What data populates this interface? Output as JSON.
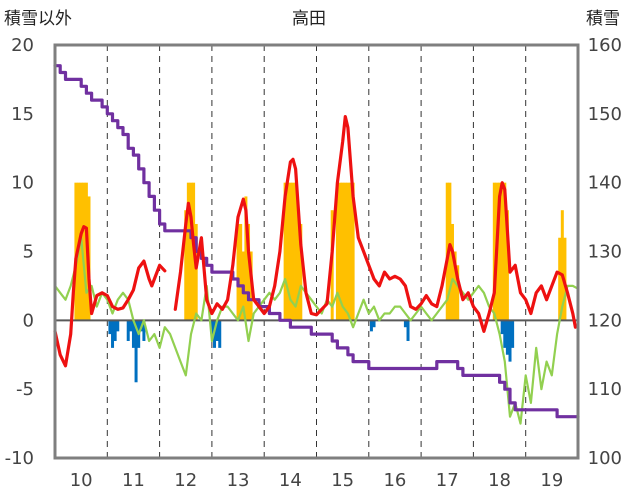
{
  "chart_data": {
    "type": "line",
    "title": "高田",
    "ylabel_left": "積雪以外",
    "ylabel_right": "積雪",
    "ylim_left": [
      -10,
      20
    ],
    "ylim_right": [
      100,
      160
    ],
    "yticks_left": [
      "20",
      "15",
      "10",
      "5",
      "0",
      "-5",
      "-10"
    ],
    "yticks_right": [
      "160",
      "150",
      "140",
      "130",
      "120",
      "110",
      "100"
    ],
    "xlim": [
      9.5,
      19.5
    ],
    "xticks": [
      "10",
      "11",
      "12",
      "13",
      "14",
      "15",
      "16",
      "17",
      "18",
      "19"
    ],
    "grid": "vertical-dashed",
    "colors": {
      "red": "#ee1111",
      "green": "#92d050",
      "purple": "#7030a0",
      "orange": "#ffc000",
      "blue": "#0070c0",
      "frame": "#7f7f7f"
    },
    "series": [
      {
        "color": "#ee1111",
        "axis": "left",
        "x": [
          9.5,
          9.6,
          9.7,
          9.8,
          9.85,
          9.9,
          10.0,
          10.05,
          10.1,
          10.15,
          10.2,
          10.3,
          10.4,
          10.5,
          10.6,
          10.7,
          10.8,
          10.9,
          11.0,
          11.1,
          11.2,
          11.3,
          11.35,
          11.4,
          11.5,
          11.6,
          11.7,
          11.8,
          11.9,
          12.0,
          12.05,
          12.1,
          12.15,
          12.2,
          12.3,
          12.4,
          12.5,
          12.6,
          12.7,
          12.8,
          12.9,
          13.0,
          13.1,
          13.15,
          13.2,
          13.3,
          13.4,
          13.5,
          13.6,
          13.7,
          13.8,
          13.9,
          14.0,
          14.05,
          14.1,
          14.2,
          14.3,
          14.4,
          14.5,
          14.6,
          14.7,
          14.8,
          14.9,
          15.0,
          15.05,
          15.1,
          15.2,
          15.3,
          15.4,
          15.5,
          15.6,
          15.7,
          15.8,
          15.9,
          16.0,
          16.1,
          16.2,
          16.3,
          16.4,
          16.5,
          16.6,
          16.7,
          16.8,
          16.9,
          17.0,
          17.05,
          17.1,
          17.2,
          17.3,
          17.4,
          17.5,
          17.6,
          17.7,
          17.8,
          17.9,
          18.0,
          18.05,
          18.1,
          18.2,
          18.3,
          18.4,
          18.5,
          18.6,
          18.7,
          18.8,
          18.9,
          19.0,
          19.1,
          19.2,
          19.3,
          19.4,
          19.45
        ],
        "values": [
          -0.8,
          -2.5,
          -3.3,
          -1.0,
          2.0,
          4.5,
          6.3,
          6.8,
          6.7,
          3.0,
          0.5,
          1.8,
          2.0,
          1.8,
          1.0,
          0.8,
          0.9,
          1.5,
          2.2,
          3.8,
          4.3,
          3.0,
          2.5,
          3.0,
          4.0,
          3.6,
          null,
          0.8,
          3.5,
          7.0,
          8.5,
          7.5,
          5.5,
          3.8,
          6.0,
          1.5,
          0.5,
          1.2,
          0.8,
          1.5,
          4.0,
          7.5,
          8.8,
          8.0,
          5.0,
          1.5,
          1.0,
          0.5,
          1.0,
          2.5,
          5.0,
          9.0,
          11.5,
          11.7,
          11.0,
          5.5,
          2.0,
          0.5,
          0.4,
          0.8,
          1.2,
          5.0,
          10.0,
          13.0,
          14.8,
          14.0,
          9.0,
          6.0,
          5.0,
          4.0,
          3.0,
          2.5,
          3.5,
          3.0,
          3.2,
          3.0,
          2.5,
          1.0,
          0.8,
          1.2,
          1.8,
          1.2,
          1.0,
          2.5,
          4.5,
          5.5,
          5.0,
          3.0,
          1.5,
          2.0,
          1.0,
          0.5,
          -0.8,
          0.5,
          2.0,
          9.0,
          10.0,
          9.5,
          3.5,
          4.0,
          2.0,
          1.5,
          0.5,
          2.0,
          2.5,
          1.5,
          2.5,
          3.5,
          3.3,
          2.0,
          0.5,
          -0.5
        ]
      },
      {
        "color": "#92d050",
        "axis": "left",
        "x": [
          9.5,
          9.6,
          9.7,
          9.8,
          9.9,
          10.0,
          10.1,
          10.2,
          10.3,
          10.4,
          10.5,
          10.6,
          10.7,
          10.8,
          10.9,
          11.0,
          11.1,
          11.2,
          11.3,
          11.4,
          11.5,
          11.6,
          11.7,
          11.8,
          11.9,
          12.0,
          12.1,
          12.2,
          12.3,
          12.4,
          12.5,
          12.6,
          12.7,
          12.8,
          12.9,
          13.0,
          13.1,
          13.2,
          13.3,
          13.4,
          13.5,
          13.6,
          13.7,
          13.8,
          13.9,
          14.0,
          14.1,
          14.2,
          14.3,
          14.4,
          14.5,
          14.6,
          14.7,
          14.8,
          14.9,
          15.0,
          15.1,
          15.2,
          15.3,
          15.4,
          15.5,
          15.6,
          15.7,
          15.8,
          15.9,
          16.0,
          16.1,
          16.2,
          16.3,
          16.4,
          16.5,
          16.6,
          16.7,
          16.8,
          16.9,
          17.0,
          17.1,
          17.2,
          17.3,
          17.4,
          17.5,
          17.6,
          17.7,
          17.8,
          17.9,
          18.0,
          18.1,
          18.2,
          18.3,
          18.4,
          18.5,
          18.6,
          18.7,
          18.8,
          18.9,
          19.0,
          19.1,
          19.2,
          19.3,
          19.4,
          19.5
        ],
        "values": [
          2.5,
          2.0,
          1.5,
          2.5,
          4.0,
          6.0,
          2.0,
          2.5,
          1.0,
          2.0,
          1.5,
          0.5,
          1.5,
          2.0,
          1.5,
          0.0,
          -1.0,
          0.0,
          -1.5,
          -1.0,
          -2.0,
          -0.5,
          -1.0,
          -2.0,
          -3.0,
          -4.0,
          -1.0,
          0.5,
          0.0,
          2.5,
          -1.5,
          0.0,
          1.0,
          1.0,
          0.5,
          0.0,
          1.0,
          -1.5,
          0.5,
          1.0,
          1.5,
          2.0,
          1.5,
          2.0,
          3.0,
          1.5,
          1.0,
          2.5,
          2.0,
          1.5,
          1.0,
          0.5,
          1.5,
          1.0,
          2.0,
          1.0,
          0.5,
          -0.5,
          0.5,
          1.5,
          0.5,
          1.0,
          0.0,
          0.5,
          0.5,
          1.0,
          1.0,
          0.5,
          0.0,
          0.5,
          1.0,
          0.5,
          0.0,
          0.5,
          1.0,
          1.5,
          3.0,
          2.5,
          2.0,
          1.5,
          2.0,
          2.5,
          2.0,
          1.0,
          0.5,
          -1.0,
          -3.0,
          -7.0,
          -6.0,
          -7.5,
          -4.0,
          -6.0,
          -2.0,
          -5.0,
          -3.0,
          -4.0,
          -1.0,
          1.0,
          2.5,
          2.5,
          2.3
        ]
      },
      {
        "color": "#7030a0",
        "axis": "right",
        "x": [
          9.5,
          9.6,
          9.7,
          9.8,
          9.9,
          10.0,
          10.1,
          10.2,
          10.3,
          10.4,
          10.5,
          10.6,
          10.7,
          10.8,
          10.9,
          11.0,
          11.1,
          11.2,
          11.3,
          11.4,
          11.5,
          11.6,
          11.7,
          11.8,
          11.9,
          12.0,
          12.1,
          12.2,
          12.3,
          12.4,
          12.5,
          12.6,
          12.7,
          12.8,
          12.9,
          13.0,
          13.1,
          13.2,
          13.3,
          13.4,
          13.5,
          13.6,
          13.7,
          13.8,
          13.9,
          14.0,
          14.1,
          14.2,
          14.3,
          14.4,
          14.5,
          14.6,
          14.7,
          14.8,
          14.9,
          15.0,
          15.1,
          15.2,
          15.3,
          15.4,
          15.5,
          15.6,
          15.7,
          15.8,
          15.9,
          16.0,
          16.1,
          16.2,
          16.3,
          16.4,
          16.5,
          16.6,
          16.7,
          16.8,
          16.9,
          17.0,
          17.1,
          17.2,
          17.3,
          17.4,
          17.5,
          17.6,
          17.7,
          17.8,
          17.9,
          18.0,
          18.1,
          18.2,
          18.3,
          18.4,
          18.5,
          18.6,
          18.7,
          18.8,
          18.9,
          19.0,
          19.1,
          19.2,
          19.3,
          19.4,
          19.5
        ],
        "values": [
          157,
          156,
          155,
          155,
          155,
          154,
          153,
          152,
          152,
          151,
          150,
          149,
          148,
          147,
          145,
          144,
          142,
          140,
          138,
          136,
          134,
          133,
          133,
          133,
          133,
          133,
          132,
          130,
          129,
          128,
          127,
          127,
          127,
          127,
          126,
          125,
          124,
          123,
          123,
          122,
          122,
          121,
          121,
          120,
          120,
          119,
          119,
          119,
          119,
          118,
          118,
          118,
          118,
          117,
          116,
          116,
          115,
          114,
          114,
          114,
          113,
          113,
          113,
          113,
          113,
          113,
          113,
          113,
          113,
          113,
          113,
          113,
          113,
          114,
          114,
          114,
          114,
          113,
          112,
          112,
          112,
          112,
          112,
          112,
          112,
          111,
          110,
          108,
          107,
          107,
          107,
          107,
          107,
          107,
          107,
          107,
          106,
          106,
          106,
          106,
          106
        ]
      }
    ],
    "bars": {
      "orange": {
        "color": "#ffc000",
        "axis": "left",
        "x": [
          9.9,
          9.95,
          10.0,
          10.05,
          10.1,
          10.15,
          12.0,
          12.05,
          12.1,
          12.15,
          12.2,
          13.0,
          13.05,
          13.1,
          13.15,
          13.2,
          13.25,
          13.9,
          13.95,
          14.0,
          14.05,
          14.1,
          14.15,
          14.2,
          14.8,
          14.9,
          14.95,
          15.0,
          15.05,
          15.1,
          15.15,
          15.2,
          17.0,
          17.05,
          17.1,
          17.15,
          17.2,
          17.9,
          17.95,
          18.0,
          18.05,
          18.1,
          18.15,
          19.15,
          19.2,
          19.25
        ],
        "values": [
          10,
          10,
          10,
          10,
          10,
          9,
          8,
          10,
          10,
          10,
          7,
          7,
          7,
          5,
          9,
          7,
          5,
          10,
          10,
          10,
          10,
          10,
          8,
          7,
          8,
          10,
          10,
          10,
          10,
          10,
          10,
          10,
          10,
          10,
          7,
          5,
          4,
          10,
          10,
          10,
          10,
          10,
          8,
          6,
          8,
          6
        ]
      },
      "blue": {
        "color": "#0070c0",
        "axis": "left",
        "x": [
          10.55,
          10.6,
          10.65,
          10.7,
          10.9,
          10.95,
          11.0,
          11.05,
          11.1,
          11.15,
          11.2,
          12.5,
          12.55,
          12.6,
          12.65,
          15.55,
          15.6,
          16.2,
          16.25,
          18.05,
          18.1,
          18.15,
          18.2,
          18.25
        ],
        "values": [
          -1.0,
          -2.0,
          -1.5,
          -0.8,
          -1.5,
          -0.8,
          -2.0,
          -4.5,
          -2.0,
          -0.8,
          -1.5,
          -1.0,
          -2.0,
          -1.5,
          -2.0,
          -0.8,
          -0.5,
          -0.5,
          -1.5,
          -1.0,
          -2.0,
          -2.5,
          -3.0,
          -2.0
        ]
      }
    }
  }
}
